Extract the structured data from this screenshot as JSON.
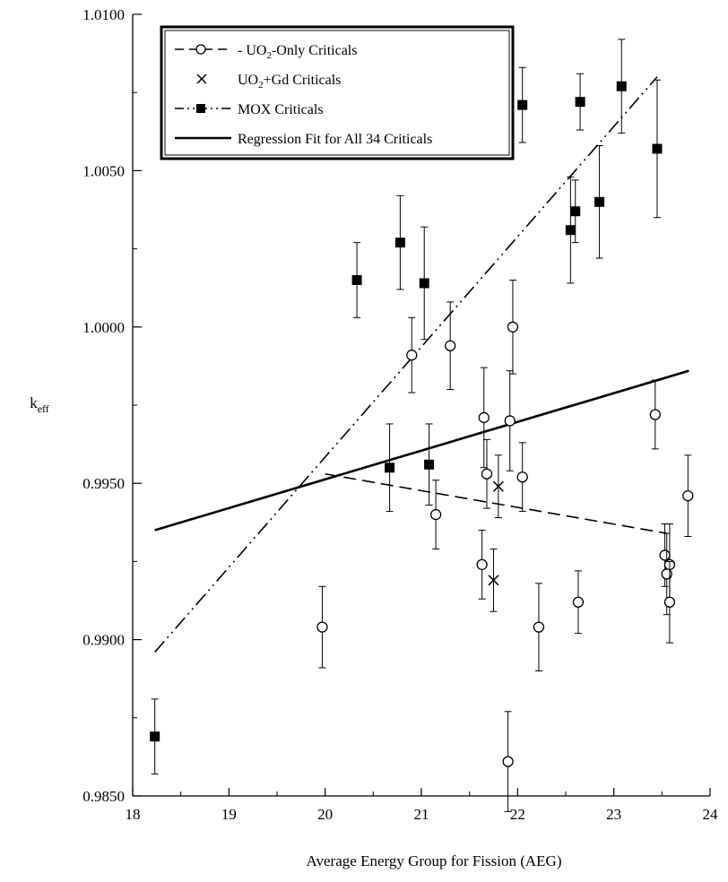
{
  "chart_data": {
    "type": "scatter",
    "xlabel": "Average Energy Group for Fission (AEG)",
    "ylabel": "k",
    "ylabel_sub": "eff",
    "xlim": [
      18,
      24
    ],
    "ylim": [
      0.985,
      1.01
    ],
    "x_ticks": [
      "18",
      "19",
      "20",
      "21",
      "22",
      "23",
      "24"
    ],
    "y_ticks": [
      "0.9850",
      "0.9900",
      "0.9950",
      "1.0000",
      "1.0050",
      "1.0100"
    ],
    "legend_placement": "top-left",
    "legend": [
      {
        "main": "UO",
        "sub": "2",
        "rest": "-Only Criticals",
        "prefix": "- ",
        "marker": "circle",
        "line": "dashed"
      },
      {
        "main": "UO",
        "sub": "2",
        "rest": "+Gd Criticals",
        "prefix": "",
        "marker": "x",
        "line": "none"
      },
      {
        "main": "MOX Criticals",
        "sub": "",
        "rest": "",
        "prefix": "",
        "marker": "square",
        "line": "dash-dot-dot"
      },
      {
        "main": "Regression Fit for All 34 Criticals",
        "sub": "",
        "rest": "",
        "prefix": "",
        "marker": "none",
        "line": "solid"
      }
    ],
    "series": [
      {
        "name": "UO2-Only Criticals",
        "marker": "circle",
        "points": [
          {
            "x": 19.97,
            "y": 0.9904,
            "err": 0.0013
          },
          {
            "x": 20.9,
            "y": 0.9991,
            "err": 0.0012
          },
          {
            "x": 21.3,
            "y": 0.9994,
            "err": 0.0014
          },
          {
            "x": 21.65,
            "y": 0.9971,
            "err": 0.0016
          },
          {
            "x": 21.68,
            "y": 0.9953,
            "err": 0.0011
          },
          {
            "x": 21.15,
            "y": 0.994,
            "err": 0.0011
          },
          {
            "x": 21.63,
            "y": 0.9924,
            "err": 0.0011
          },
          {
            "x": 21.92,
            "y": 0.997,
            "err": 0.0016
          },
          {
            "x": 21.95,
            "y": 1.0,
            "err": 0.0015
          },
          {
            "x": 22.05,
            "y": 0.9952,
            "err": 0.0011
          },
          {
            "x": 22.22,
            "y": 0.9904,
            "err": 0.0014
          },
          {
            "x": 22.63,
            "y": 0.9912,
            "err": 0.001
          },
          {
            "x": 21.9,
            "y": 0.9861,
            "err": 0.0016
          },
          {
            "x": 23.43,
            "y": 0.9972,
            "err": 0.0011
          },
          {
            "x": 23.53,
            "y": 0.9927,
            "err": 0.001
          },
          {
            "x": 23.55,
            "y": 0.9921,
            "err": 0.0013
          },
          {
            "x": 23.58,
            "y": 0.9924,
            "err": 0.0013
          },
          {
            "x": 23.58,
            "y": 0.9912,
            "err": 0.0013
          },
          {
            "x": 23.77,
            "y": 0.9946,
            "err": 0.0013
          }
        ]
      },
      {
        "name": "UO2+Gd Criticals",
        "marker": "x",
        "points": [
          {
            "x": 21.8,
            "y": 0.9949,
            "err": 0.001
          },
          {
            "x": 21.75,
            "y": 0.9919,
            "err": 0.001
          }
        ]
      },
      {
        "name": "MOX Criticals",
        "marker": "square",
        "points": [
          {
            "x": 18.23,
            "y": 0.9869,
            "err": 0.0012
          },
          {
            "x": 20.33,
            "y": 1.0015,
            "err": 0.0012
          },
          {
            "x": 20.67,
            "y": 0.9955,
            "err": 0.0014
          },
          {
            "x": 20.78,
            "y": 1.0027,
            "err": 0.0015
          },
          {
            "x": 21.03,
            "y": 1.0014,
            "err": 0.0018
          },
          {
            "x": 21.08,
            "y": 0.9956,
            "err": 0.0013
          },
          {
            "x": 22.05,
            "y": 1.0071,
            "err": 0.0012
          },
          {
            "x": 22.55,
            "y": 1.0031,
            "err": 0.0017
          },
          {
            "x": 22.6,
            "y": 1.0037,
            "err": 0.001
          },
          {
            "x": 22.65,
            "y": 1.0072,
            "err": 0.0009
          },
          {
            "x": 22.85,
            "y": 1.004,
            "err": 0.0018
          },
          {
            "x": 23.08,
            "y": 1.0077,
            "err": 0.0015
          },
          {
            "x": 23.45,
            "y": 1.0057,
            "err": 0.0022
          }
        ]
      }
    ],
    "fit_lines": [
      {
        "name": "UO2-Only fit",
        "style": "dashed",
        "x": [
          20.0,
          23.55
        ],
        "y": [
          0.9953,
          0.9934
        ]
      },
      {
        "name": "MOX fit",
        "style": "dash-dot-dot",
        "x": [
          18.23,
          23.45
        ],
        "y": [
          0.9896,
          1.008
        ]
      },
      {
        "name": "Regression Fit for All 34 Criticals",
        "style": "solid",
        "x": [
          18.23,
          23.78
        ],
        "y": [
          0.9935,
          0.9986
        ]
      }
    ]
  }
}
